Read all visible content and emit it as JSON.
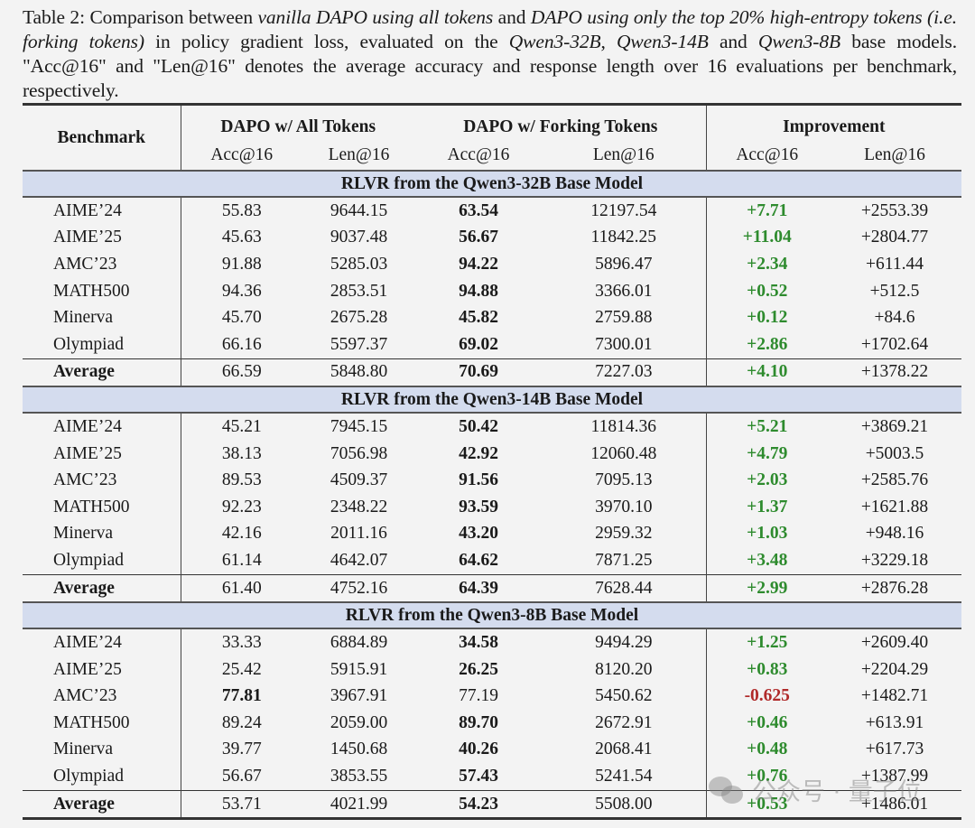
{
  "caption": {
    "label": "Table 2: Comparison between ",
    "i1": "vanilla DAPO using all tokens",
    "t2": " and ",
    "i2": "DAPO using only the top 20% high-entropy tokens (i.e. forking tokens)",
    "t3": " in policy gradient loss, evaluated on the ",
    "i3": "Qwen3-32B",
    "t4": ", ",
    "i4": "Qwen3-14B",
    "t5": " and ",
    "i5": "Qwen3-8B",
    "t6": " base models.  \"Acc@16\" and \"Len@16\" denotes the average accuracy and response length over 16 evaluations per benchmark, respectively."
  },
  "header": {
    "benchmark": "Benchmark",
    "groups": [
      "DAPO w/ All Tokens",
      "DAPO w/ Forking Tokens",
      "Improvement"
    ],
    "sub": [
      "Acc@16",
      "Len@16",
      "Acc@16",
      "Len@16",
      "Acc@16",
      "Len@16"
    ]
  },
  "sections": [
    {
      "title": "RLVR from the Qwen3-32B Base Model",
      "rows": [
        {
          "benchmark": "AIME’24",
          "all_acc": "55.83",
          "all_len": "9644.15",
          "fork_acc": "63.54",
          "fork_len": "12197.54",
          "imp_acc": "+7.71",
          "imp_len": "+2553.39",
          "bold": "fork"
        },
        {
          "benchmark": "AIME’25",
          "all_acc": "45.63",
          "all_len": "9037.48",
          "fork_acc": "56.67",
          "fork_len": "11842.25",
          "imp_acc": "+11.04",
          "imp_len": "+2804.77",
          "bold": "fork"
        },
        {
          "benchmark": "AMC’23",
          "all_acc": "91.88",
          "all_len": "5285.03",
          "fork_acc": "94.22",
          "fork_len": "5896.47",
          "imp_acc": "+2.34",
          "imp_len": "+611.44",
          "bold": "fork"
        },
        {
          "benchmark": "MATH500",
          "all_acc": "94.36",
          "all_len": "2853.51",
          "fork_acc": "94.88",
          "fork_len": "3366.01",
          "imp_acc": "+0.52",
          "imp_len": "+512.5",
          "bold": "fork"
        },
        {
          "benchmark": "Minerva",
          "all_acc": "45.70",
          "all_len": "2675.28",
          "fork_acc": "45.82",
          "fork_len": "2759.88",
          "imp_acc": "+0.12",
          "imp_len": "+84.6",
          "bold": "fork"
        },
        {
          "benchmark": "Olympiad",
          "all_acc": "66.16",
          "all_len": "5597.37",
          "fork_acc": "69.02",
          "fork_len": "7300.01",
          "imp_acc": "+2.86",
          "imp_len": "+1702.64",
          "bold": "fork"
        }
      ],
      "average": {
        "benchmark": "Average",
        "all_acc": "66.59",
        "all_len": "5848.80",
        "fork_acc": "70.69",
        "fork_len": "7227.03",
        "imp_acc": "+4.10",
        "imp_len": "+1378.22",
        "bold": "fork"
      }
    },
    {
      "title": "RLVR from the Qwen3-14B Base Model",
      "rows": [
        {
          "benchmark": "AIME’24",
          "all_acc": "45.21",
          "all_len": "7945.15",
          "fork_acc": "50.42",
          "fork_len": "11814.36",
          "imp_acc": "+5.21",
          "imp_len": "+3869.21",
          "bold": "fork"
        },
        {
          "benchmark": "AIME’25",
          "all_acc": "38.13",
          "all_len": "7056.98",
          "fork_acc": "42.92",
          "fork_len": "12060.48",
          "imp_acc": "+4.79",
          "imp_len": "+5003.5",
          "bold": "fork"
        },
        {
          "benchmark": "AMC’23",
          "all_acc": "89.53",
          "all_len": "4509.37",
          "fork_acc": "91.56",
          "fork_len": "7095.13",
          "imp_acc": "+2.03",
          "imp_len": "+2585.76",
          "bold": "fork"
        },
        {
          "benchmark": "MATH500",
          "all_acc": "92.23",
          "all_len": "2348.22",
          "fork_acc": "93.59",
          "fork_len": "3970.10",
          "imp_acc": "+1.37",
          "imp_len": "+1621.88",
          "bold": "fork"
        },
        {
          "benchmark": "Minerva",
          "all_acc": "42.16",
          "all_len": "2011.16",
          "fork_acc": "43.20",
          "fork_len": "2959.32",
          "imp_acc": "+1.03",
          "imp_len": "+948.16",
          "bold": "fork"
        },
        {
          "benchmark": "Olympiad",
          "all_acc": "61.14",
          "all_len": "4642.07",
          "fork_acc": "64.62",
          "fork_len": "7871.25",
          "imp_acc": "+3.48",
          "imp_len": "+3229.18",
          "bold": "fork"
        }
      ],
      "average": {
        "benchmark": "Average",
        "all_acc": "61.40",
        "all_len": "4752.16",
        "fork_acc": "64.39",
        "fork_len": "7628.44",
        "imp_acc": "+2.99",
        "imp_len": "+2876.28",
        "bold": "fork"
      }
    },
    {
      "title": "RLVR from the Qwen3-8B Base Model",
      "rows": [
        {
          "benchmark": "AIME’24",
          "all_acc": "33.33",
          "all_len": "6884.89",
          "fork_acc": "34.58",
          "fork_len": "9494.29",
          "imp_acc": "+1.25",
          "imp_len": "+2609.40",
          "bold": "fork"
        },
        {
          "benchmark": "AIME’25",
          "all_acc": "25.42",
          "all_len": "5915.91",
          "fork_acc": "26.25",
          "fork_len": "8120.20",
          "imp_acc": "+0.83",
          "imp_len": "+2204.29",
          "bold": "fork"
        },
        {
          "benchmark": "AMC’23",
          "all_acc": "77.81",
          "all_len": "3967.91",
          "fork_acc": "77.19",
          "fork_len": "5450.62",
          "imp_acc": "-0.625",
          "imp_len": "+1482.71",
          "bold": "all"
        },
        {
          "benchmark": "MATH500",
          "all_acc": "89.24",
          "all_len": "2059.00",
          "fork_acc": "89.70",
          "fork_len": "2672.91",
          "imp_acc": "+0.46",
          "imp_len": "+613.91",
          "bold": "fork"
        },
        {
          "benchmark": "Minerva",
          "all_acc": "39.77",
          "all_len": "1450.68",
          "fork_acc": "40.26",
          "fork_len": "2068.41",
          "imp_acc": "+0.48",
          "imp_len": "+617.73",
          "bold": "fork"
        },
        {
          "benchmark": "Olympiad",
          "all_acc": "56.67",
          "all_len": "3853.55",
          "fork_acc": "57.43",
          "fork_len": "5241.54",
          "imp_acc": "+0.76",
          "imp_len": "+1387.99",
          "bold": "fork"
        }
      ],
      "average": {
        "benchmark": "Average",
        "all_acc": "53.71",
        "all_len": "4021.99",
        "fork_acc": "54.23",
        "fork_len": "5508.00",
        "imp_acc": "+0.53",
        "imp_len": "+1486.01",
        "bold": "fork"
      }
    }
  ],
  "colors": {
    "positive": "#2e8b2e",
    "negative": "#b02a2a",
    "band": "#d4dcee"
  },
  "watermark": "公众号 · 量子位"
}
